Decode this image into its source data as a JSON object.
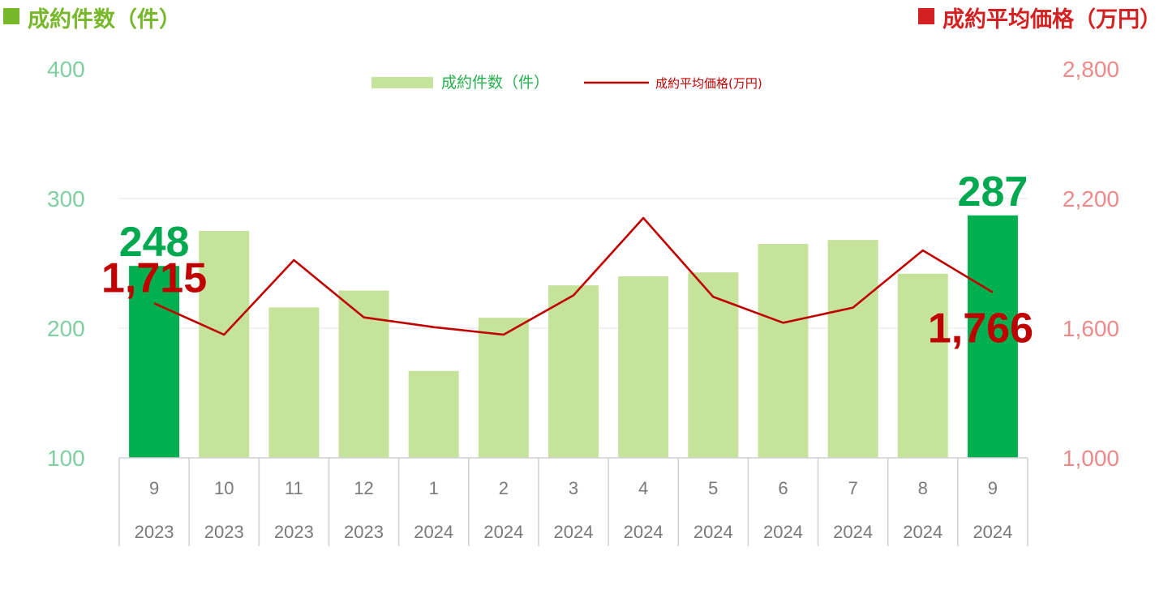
{
  "header": {
    "left_title": "成約件数（件）",
    "right_title": "成約平均価格（万円）"
  },
  "colors": {
    "highlight_bar": "#00b050",
    "bar": "#c5e39b",
    "line": "#c00000",
    "left_title": "#77b82a",
    "right_title": "#d42020"
  },
  "chart_data": {
    "type": "bar",
    "categories": [
      "9",
      "10",
      "11",
      "12",
      "1",
      "2",
      "3",
      "4",
      "5",
      "6",
      "7",
      "8",
      "9"
    ],
    "year_labels": [
      "2023",
      "2023",
      "2023",
      "2023",
      "2024",
      "2024",
      "2024",
      "2024",
      "2024",
      "2024",
      "2024",
      "2024",
      "2024"
    ],
    "series": [
      {
        "name": "成約件数（件）",
        "type": "bar",
        "axis": "left",
        "values": [
          248,
          275,
          216,
          229,
          167,
          208,
          233,
          240,
          243,
          265,
          268,
          242,
          287
        ],
        "highlight": [
          0,
          12
        ]
      },
      {
        "name": "成約平均価格(万円)",
        "type": "line",
        "axis": "right",
        "values": [
          1715,
          1570,
          1915,
          1650,
          1605,
          1570,
          1752,
          2110,
          1745,
          1625,
          1695,
          1960,
          1766
        ]
      }
    ],
    "left_axis": {
      "ylim": [
        100,
        400
      ],
      "ticks": [
        "100",
        "200",
        "300",
        "400"
      ]
    },
    "right_axis": {
      "ylim": [
        1000,
        2800
      ],
      "ticks": [
        "1,000",
        "1,600",
        "2,200",
        "2,800"
      ]
    },
    "data_labels": [
      {
        "series": 0,
        "index": 0,
        "text": "248"
      },
      {
        "series": 0,
        "index": 12,
        "text": "287"
      },
      {
        "series": 1,
        "index": 0,
        "text": "1,715"
      },
      {
        "series": 1,
        "index": 12,
        "text": "1,766"
      }
    ],
    "legend_position": "top-center",
    "grid": true
  }
}
